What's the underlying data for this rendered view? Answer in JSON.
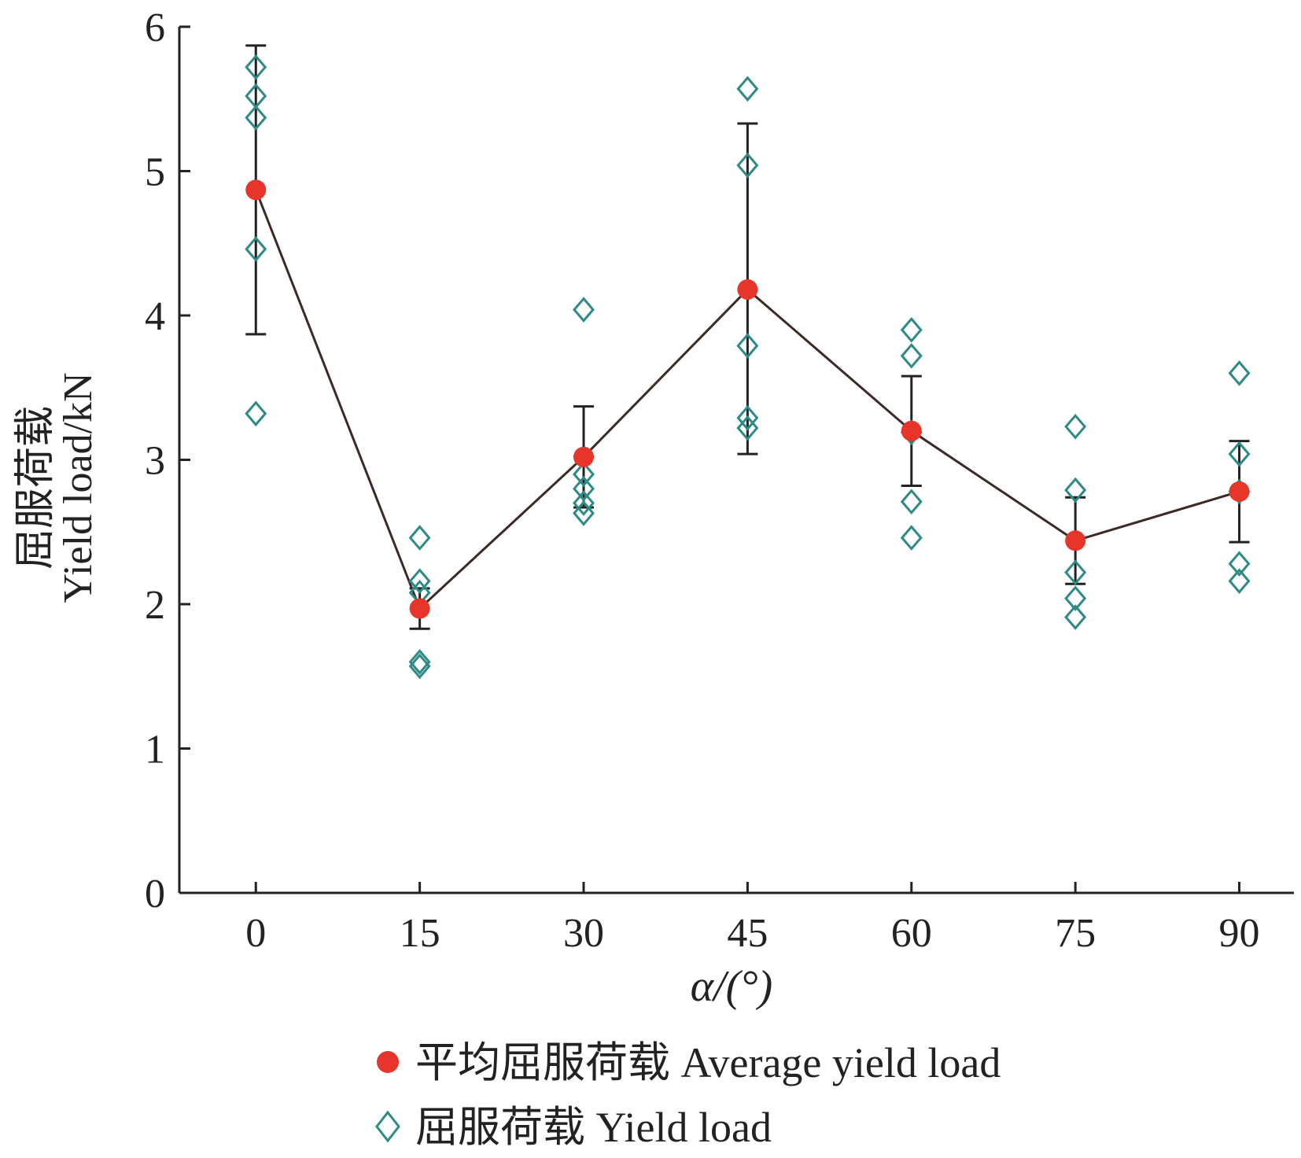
{
  "chart_data": {
    "type": "scatter",
    "xlabel": "α/(°)",
    "ylabel_cn": "屈服荷载",
    "ylabel_en": "Yield load/kN",
    "x_ticks": [
      "0",
      "15",
      "30",
      "45",
      "60",
      "75",
      "90"
    ],
    "y_ticks": [
      "0",
      "1",
      "2",
      "3",
      "4",
      "5",
      "6"
    ],
    "xlim": [
      -7,
      95
    ],
    "ylim": [
      0,
      6
    ],
    "grid": false,
    "legend_position": "bottom",
    "legend": [
      {
        "label": "平均屈服荷载  Average yield load",
        "marker": "filled-circle"
      },
      {
        "label": "屈服荷载  Yield load",
        "marker": "open-diamond"
      }
    ],
    "series": [
      {
        "name": "平均屈服荷载 Average yield load",
        "style": "line-with-markers",
        "x": [
          0,
          15,
          30,
          45,
          60,
          75,
          90
        ],
        "y": [
          4.87,
          1.97,
          3.02,
          4.18,
          3.2,
          2.44,
          2.78
        ],
        "error_low": [
          3.87,
          1.83,
          2.67,
          3.04,
          2.82,
          2.14,
          2.43
        ],
        "error_high": [
          5.87,
          2.11,
          3.37,
          5.33,
          3.58,
          2.74,
          3.13
        ]
      },
      {
        "name": "屈服荷载 Yield load",
        "style": "markers",
        "points": [
          [
            0,
            5.72
          ],
          [
            0,
            5.52
          ],
          [
            0,
            5.37
          ],
          [
            0,
            4.46
          ],
          [
            0,
            3.32
          ],
          [
            15,
            2.46
          ],
          [
            15,
            2.16
          ],
          [
            15,
            2.08
          ],
          [
            15,
            1.6
          ],
          [
            15,
            1.57
          ],
          [
            30,
            4.04
          ],
          [
            30,
            2.9
          ],
          [
            30,
            2.8
          ],
          [
            30,
            2.7
          ],
          [
            30,
            2.63
          ],
          [
            45,
            5.57
          ],
          [
            45,
            5.04
          ],
          [
            45,
            3.79
          ],
          [
            45,
            3.29
          ],
          [
            45,
            3.22
          ],
          [
            60,
            3.9
          ],
          [
            60,
            3.72
          ],
          [
            60,
            3.19
          ],
          [
            60,
            2.71
          ],
          [
            60,
            2.46
          ],
          [
            75,
            3.23
          ],
          [
            75,
            2.79
          ],
          [
            75,
            2.22
          ],
          [
            75,
            2.04
          ],
          [
            75,
            1.91
          ],
          [
            90,
            3.6
          ],
          [
            90,
            3.04
          ],
          [
            90,
            2.78
          ],
          [
            90,
            2.28
          ],
          [
            90,
            2.16
          ]
        ]
      }
    ],
    "colors": {
      "average": "#e8352b",
      "yield": "#2e8a85",
      "line": "#3b2a25",
      "axis": "#222222"
    }
  }
}
